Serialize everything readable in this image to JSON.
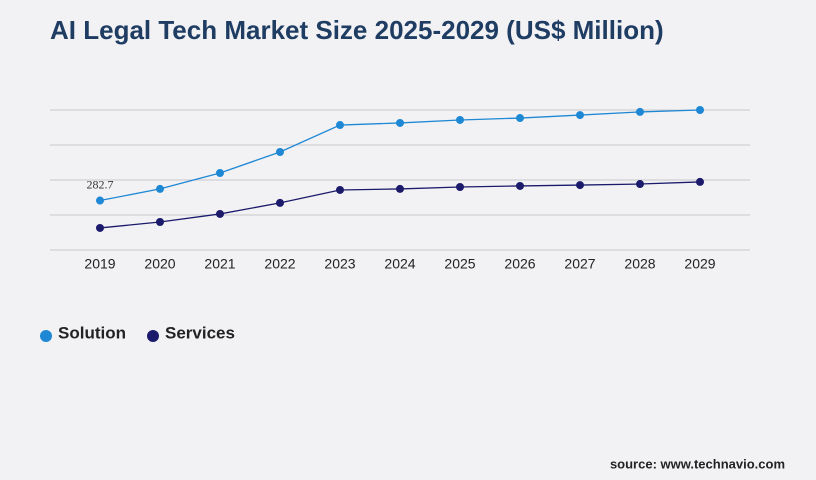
{
  "chart_data": {
    "type": "line",
    "title": "AI Legal Tech Market Size 2025-2029 (US$ Million)",
    "categories": [
      "2019",
      "2020",
      "2021",
      "2022",
      "2023",
      "2024",
      "2025",
      "2026",
      "2027",
      "2028",
      "2029"
    ],
    "series": [
      {
        "name": "Solution",
        "color": "#1e88d4",
        "values": [
          282.7,
          349,
          440,
          560,
          714,
          726,
          743,
          754,
          771,
          789,
          800
        ],
        "value_labels": [
          "282.7",
          null,
          null,
          null,
          null,
          null,
          null,
          null,
          null,
          null,
          null
        ]
      },
      {
        "name": "Services",
        "color": "#1b1a6b",
        "values": [
          126,
          160,
          206,
          269,
          343,
          349,
          360,
          366,
          371,
          377,
          389
        ]
      }
    ],
    "ylim": [
      0,
      800
    ],
    "yticks": [
      0,
      200,
      400,
      600,
      800
    ],
    "grid": true,
    "legend": "bottom-left",
    "source": "source: www.technavio.com"
  }
}
